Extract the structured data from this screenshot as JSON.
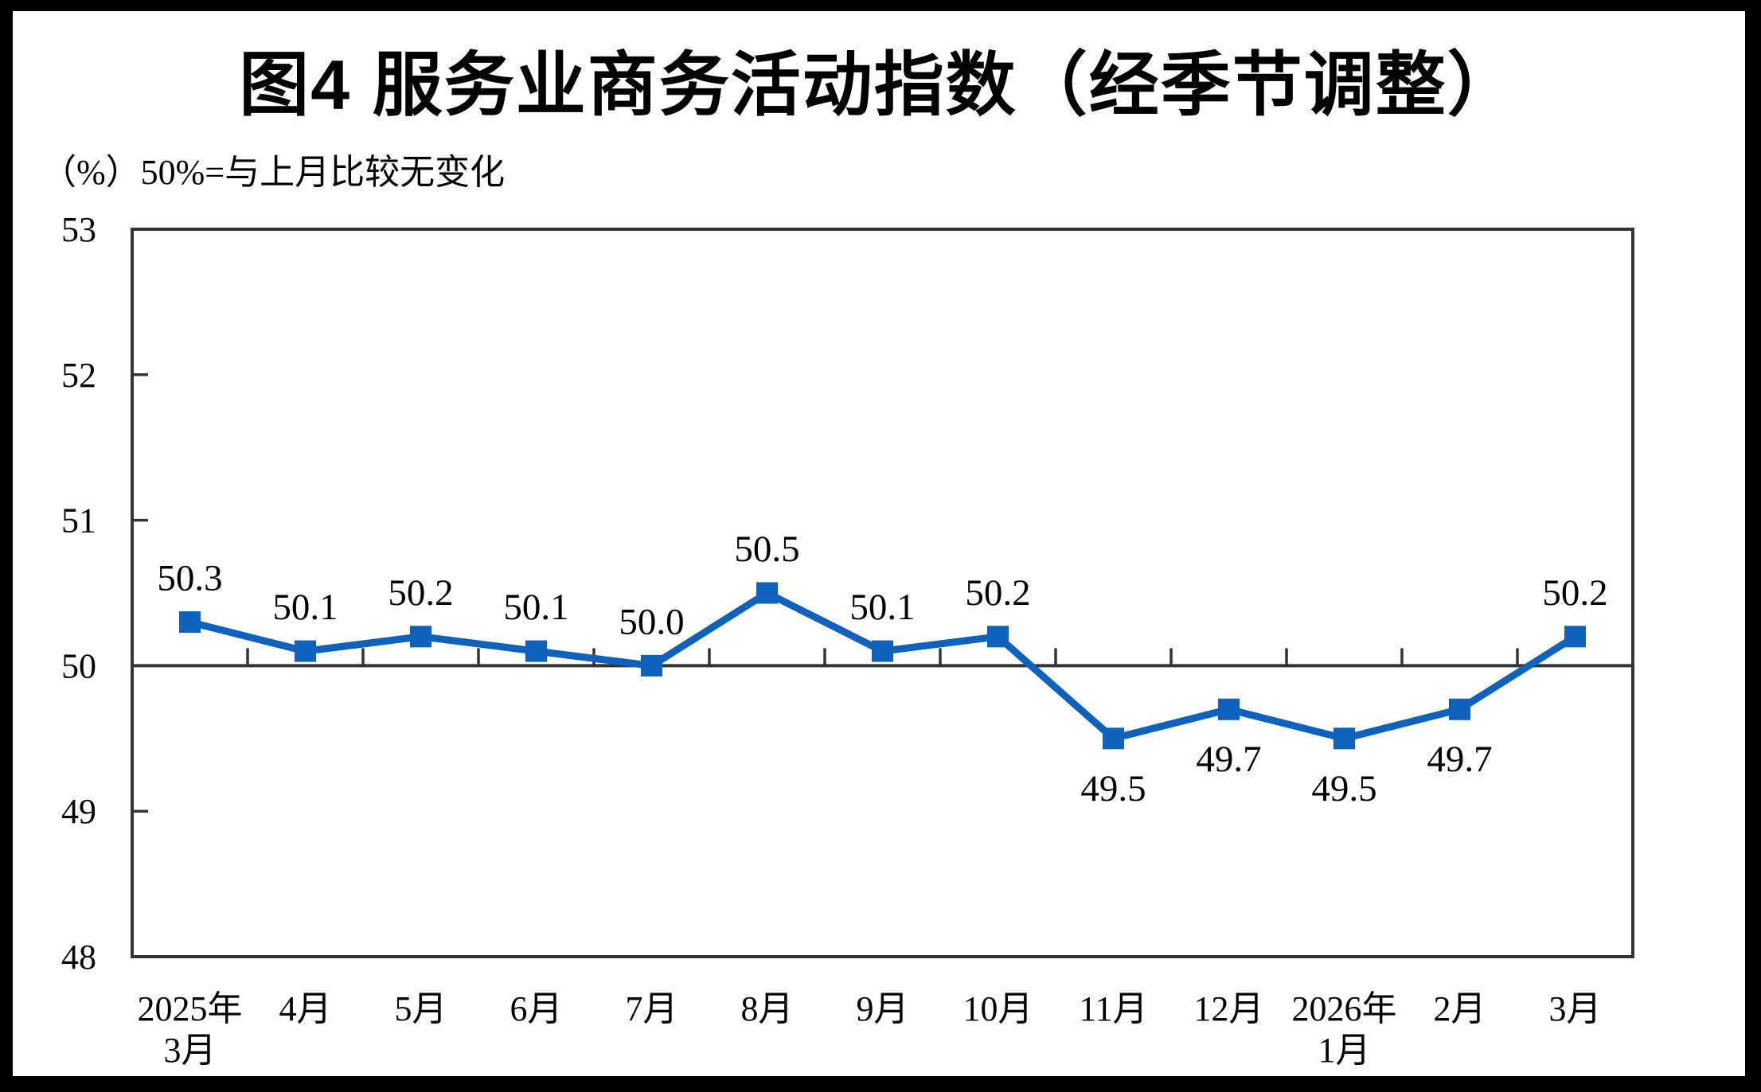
{
  "title": "图4  服务业商务活动指数（经季节调整）",
  "subtitle": "（%）50%=与上月比较无变化",
  "chart_data": {
    "type": "line",
    "title": "图4 服务业商务活动指数（经季节调整）",
    "unit_note": "（%）50%=与上月比较无变化",
    "categories": [
      [
        "2025年",
        "3月"
      ],
      [
        "4月"
      ],
      [
        "5月"
      ],
      [
        "6月"
      ],
      [
        "7月"
      ],
      [
        "8月"
      ],
      [
        "9月"
      ],
      [
        "10月"
      ],
      [
        "11月"
      ],
      [
        "12月"
      ],
      [
        "2026年",
        "1月"
      ],
      [
        "2月"
      ],
      [
        "3月"
      ]
    ],
    "values": [
      50.3,
      50.1,
      50.2,
      50.1,
      50.0,
      50.5,
      50.1,
      50.2,
      49.5,
      49.7,
      49.5,
      49.7,
      50.2
    ],
    "label_side": [
      "above",
      "above",
      "above",
      "above",
      "above",
      "above",
      "above",
      "above",
      "below",
      "below",
      "below",
      "below",
      "above"
    ],
    "ylim": [
      48,
      53
    ],
    "yticks": [
      53,
      52,
      51,
      50,
      49,
      48
    ],
    "reference_line": 50,
    "grid": "off",
    "legend": "none",
    "marker": "square",
    "xlabel": "",
    "ylabel": ""
  },
  "colors": {
    "line": "#0f62bc",
    "marker": "#0f62bc",
    "axis": "#333333",
    "text": "#000000",
    "frame": "#000000",
    "background": "#ffffff"
  }
}
